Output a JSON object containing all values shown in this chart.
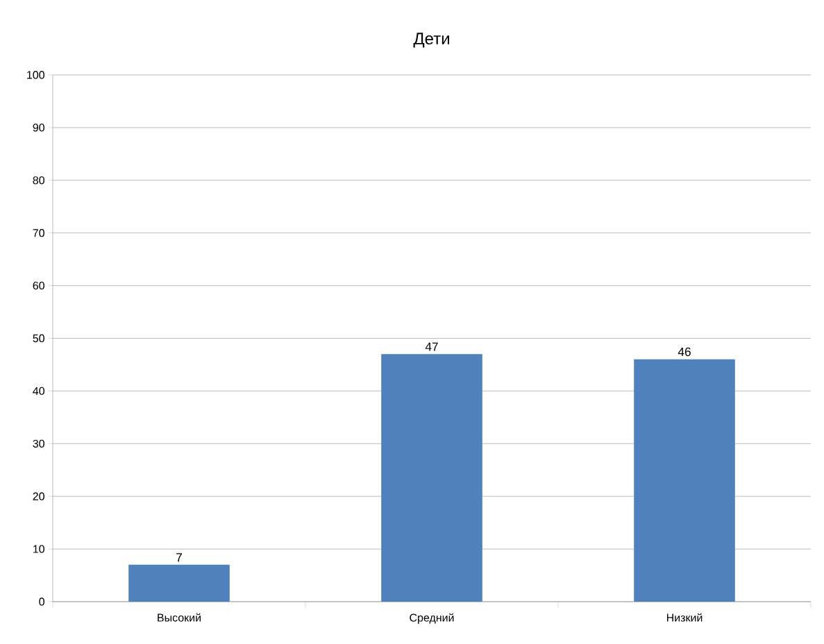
{
  "chart_data": {
    "type": "bar",
    "title": "Дети",
    "categories": [
      "Высокий",
      "Средний",
      "Низкий"
    ],
    "values": [
      7,
      47,
      46
    ],
    "color": "#4f81bd",
    "ylim": [
      0,
      100
    ],
    "yticks": [
      0,
      10,
      20,
      30,
      40,
      50,
      60,
      70,
      80,
      90,
      100
    ],
    "grid": "y",
    "data_labels": true
  }
}
